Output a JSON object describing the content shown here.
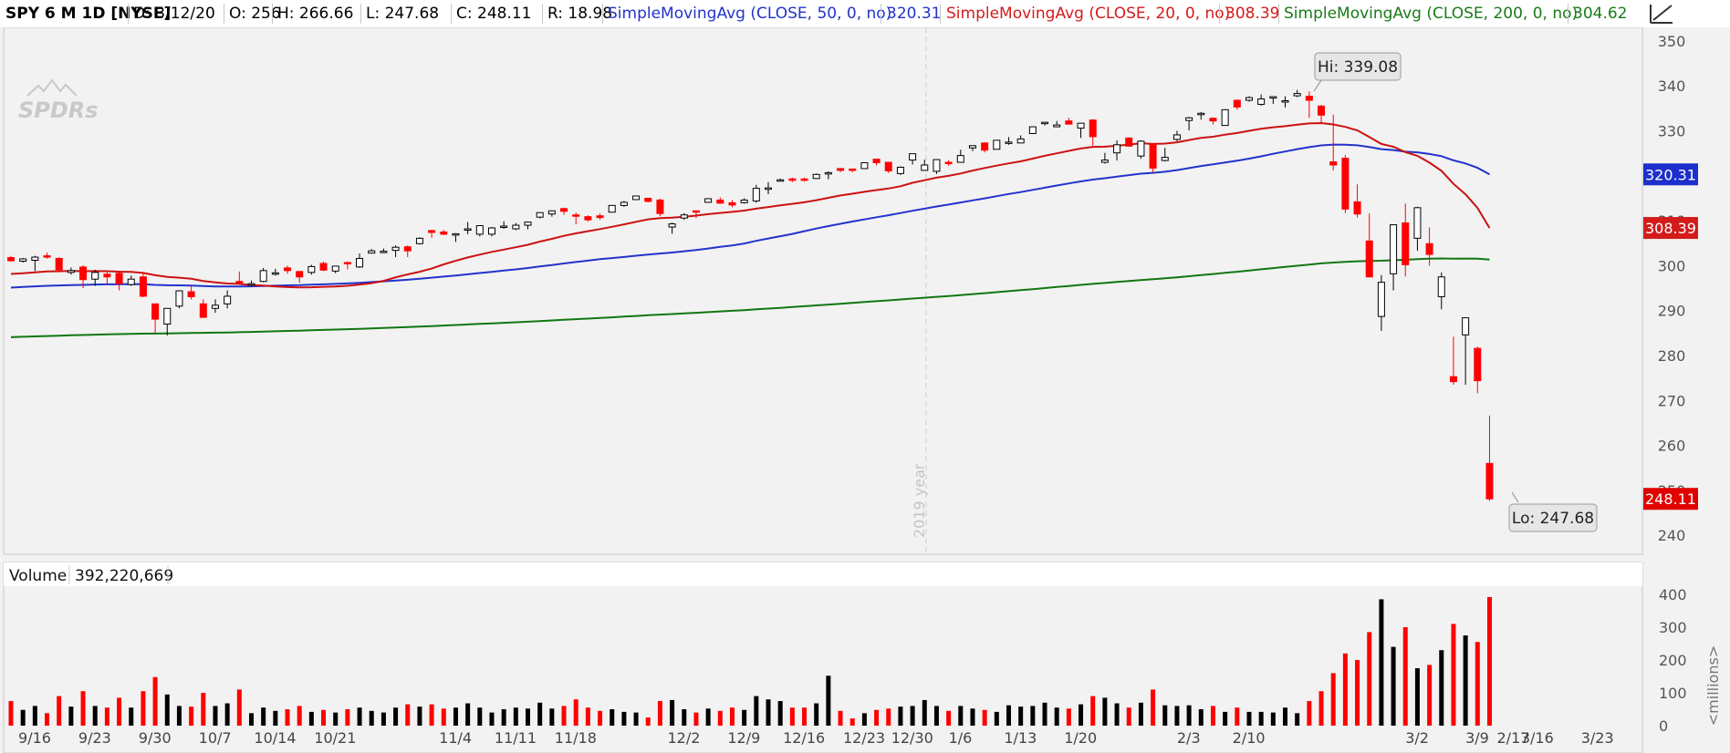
{
  "header": {
    "symbol": "SPY 6 M 1D [NYSE]",
    "date": "D: 3/12/20",
    "open": "O: 256",
    "high": "H: 266.66",
    "low": "L: 247.68",
    "close": "C: 248.11",
    "range": "R: 18.98",
    "sma50_label": "SimpleMovingAvg (CLOSE, 50, 0, no)",
    "sma50_value": "320.31",
    "sma20_label": "SimpleMovingAvg (CLOSE, 20, 0, no)",
    "sma20_value": "308.39",
    "sma200_label": "SimpleMovingAvg (CLOSE, 200, 0, no)",
    "sma200_value": "304.62",
    "tool_icon": "drawing-tool-icon"
  },
  "watermark": "SPDRs",
  "year_label": "2019 year",
  "hi_label": "Hi: 339.08",
  "lo_label": "Lo: 247.68",
  "volume": {
    "label": "Volume",
    "value": "392,220,669",
    "unit": "<millions>"
  },
  "colors": {
    "up": "#000000",
    "down": "#ff0000",
    "sma50": "#2233cc",
    "sma20": "#cc1111",
    "sma200": "#117711"
  },
  "chart_data": {
    "type": "candlestick",
    "x_tick_labels": [
      "9/16",
      "9/23",
      "9/30",
      "10/7",
      "10/14",
      "10/21",
      "11/4",
      "11/11",
      "11/18",
      "12/2",
      "12/9",
      "12/16",
      "12/23",
      "12/30",
      "1/6",
      "1/13",
      "1/20",
      "2/3",
      "2/10",
      "2/17",
      "3/2",
      "3/9",
      "3/16",
      "3/23"
    ],
    "x_tick_dates": [
      "2019-09-16",
      "2019-09-23",
      "2019-09-30",
      "2019-10-07",
      "2019-10-14",
      "2019-10-21",
      "2019-11-04",
      "2019-11-11",
      "2019-11-18",
      "2019-12-02",
      "2019-12-09",
      "2019-12-16",
      "2019-12-23",
      "2019-12-30",
      "2020-01-06",
      "2020-01-13",
      "2020-01-21",
      "2020-02-03",
      "2020-02-10",
      "2020-02-17",
      "2020-03-02",
      "2020-03-09",
      "2020-03-16",
      "2020-03-23"
    ],
    "price_axis": {
      "ticks": [
        240,
        250,
        260,
        270,
        280,
        290,
        300,
        310,
        320,
        330,
        340,
        350
      ],
      "range": [
        237,
        351
      ]
    },
    "volume_axis": {
      "ticks": [
        0,
        100,
        200,
        300,
        400
      ],
      "range": [
        0,
        400
      ],
      "unit": "millions"
    },
    "price_badges": [
      {
        "value": "320.31",
        "color": "#1c2fcc"
      },
      {
        "value": "308.39",
        "color": "#d41b1b"
      },
      {
        "value": "248.11",
        "color": "#e00000"
      }
    ],
    "bars": [
      [
        "2019-09-16",
        301.8,
        302.2,
        300.9,
        301.1,
        75
      ],
      [
        "2019-09-17",
        301.0,
        301.7,
        300.7,
        301.5,
        48
      ],
      [
        "2019-09-18",
        301.2,
        302.2,
        298.8,
        301.9,
        60
      ],
      [
        "2019-09-19",
        302.2,
        302.9,
        301.6,
        301.9,
        38
      ],
      [
        "2019-09-20",
        301.6,
        301.9,
        298.5,
        299.1,
        90
      ],
      [
        "2019-09-23",
        298.5,
        299.6,
        298.0,
        298.9,
        58
      ],
      [
        "2019-09-24",
        299.7,
        300.1,
        295.0,
        296.9,
        105
      ],
      [
        "2019-09-25",
        297.0,
        299.1,
        295.5,
        298.5,
        60
      ],
      [
        "2019-09-26",
        298.1,
        298.5,
        296.0,
        297.5,
        55
      ],
      [
        "2019-09-27",
        298.3,
        298.6,
        294.5,
        296.0,
        85
      ],
      [
        "2019-09-30",
        295.8,
        297.8,
        295.5,
        297.0,
        55
      ],
      [
        "2019-10-01",
        297.5,
        298.5,
        293.0,
        293.2,
        105
      ],
      [
        "2019-10-02",
        291.5,
        291.6,
        285.0,
        288.1,
        148
      ],
      [
        "2019-10-03",
        287.0,
        290.5,
        284.5,
        290.5,
        95
      ],
      [
        "2019-10-04",
        291.0,
        294.5,
        290.5,
        294.4,
        60
      ],
      [
        "2019-10-07",
        294.2,
        295.5,
        292.5,
        293.1,
        58
      ],
      [
        "2019-10-08",
        291.5,
        292.5,
        288.5,
        288.5,
        100
      ],
      [
        "2019-10-09",
        290.5,
        292.5,
        289.5,
        291.2,
        60
      ],
      [
        "2019-10-10",
        291.5,
        294.5,
        290.5,
        293.2,
        68
      ],
      [
        "2019-10-11",
        296.5,
        298.7,
        296.0,
        296.3,
        110
      ],
      [
        "2019-10-14",
        296.0,
        296.7,
        295.5,
        296.0,
        38
      ],
      [
        "2019-10-15",
        296.5,
        299.5,
        296.3,
        298.9,
        55
      ],
      [
        "2019-10-16",
        298.4,
        299.3,
        297.8,
        298.4,
        45
      ],
      [
        "2019-10-17",
        299.5,
        300.0,
        298.2,
        298.9,
        50
      ],
      [
        "2019-10-18",
        298.7,
        298.8,
        296.2,
        297.5,
        60
      ],
      [
        "2019-10-21",
        298.5,
        300.2,
        298.0,
        299.8,
        42
      ],
      [
        "2019-10-22",
        300.5,
        300.9,
        298.8,
        299.0,
        48
      ],
      [
        "2019-10-23",
        298.8,
        299.9,
        298.3,
        299.9,
        40
      ],
      [
        "2019-10-24",
        300.7,
        300.9,
        299.2,
        300.5,
        50
      ],
      [
        "2019-10-25",
        299.7,
        302.7,
        299.5,
        301.6,
        55
      ],
      [
        "2019-10-28",
        302.8,
        303.7,
        302.8,
        303.3,
        45
      ],
      [
        "2019-10-29",
        303.0,
        303.8,
        302.8,
        303.2,
        40
      ],
      [
        "2019-10-30",
        303.4,
        304.5,
        301.9,
        304.1,
        55
      ],
      [
        "2019-10-31",
        304.2,
        304.5,
        301.9,
        303.3,
        65
      ],
      [
        "2019-11-01",
        304.9,
        306.3,
        304.7,
        306.1,
        58
      ],
      [
        "2019-11-04",
        307.8,
        308.0,
        306.2,
        307.4,
        65
      ],
      [
        "2019-11-05",
        307.5,
        308.0,
        306.8,
        307.0,
        52
      ],
      [
        "2019-11-06",
        306.9,
        307.2,
        305.3,
        307.1,
        55
      ],
      [
        "2019-11-07",
        307.9,
        309.7,
        307.0,
        308.2,
        68
      ],
      [
        "2019-11-08",
        307.0,
        308.9,
        306.5,
        308.9,
        55
      ],
      [
        "2019-11-11",
        307.0,
        308.6,
        306.5,
        308.4,
        40
      ],
      [
        "2019-11-12",
        308.6,
        309.9,
        308.2,
        308.8,
        50
      ],
      [
        "2019-11-13",
        308.2,
        309.5,
        307.9,
        309.0,
        55
      ],
      [
        "2019-11-14",
        309.0,
        309.7,
        308.1,
        309.7,
        52
      ],
      [
        "2019-11-15",
        310.8,
        311.8,
        310.5,
        311.8,
        70
      ],
      [
        "2019-11-18",
        311.5,
        312.3,
        310.9,
        312.2,
        52
      ],
      [
        "2019-11-19",
        312.7,
        312.9,
        311.3,
        312.1,
        60
      ],
      [
        "2019-11-20",
        311.3,
        311.8,
        309.2,
        311.2,
        80
      ],
      [
        "2019-11-21",
        310.9,
        311.2,
        309.8,
        310.2,
        55
      ],
      [
        "2019-11-22",
        311.1,
        311.6,
        310.2,
        310.7,
        45
      ],
      [
        "2019-11-25",
        311.9,
        313.4,
        311.9,
        313.4,
        50
      ],
      [
        "2019-11-26",
        313.4,
        314.4,
        313.1,
        314.1,
        42
      ],
      [
        "2019-11-27",
        314.7,
        315.5,
        314.6,
        315.5,
        40
      ],
      [
        "2019-11-29",
        315.0,
        315.1,
        314.1,
        314.3,
        25
      ],
      [
        "2019-12-02",
        314.6,
        314.9,
        311.0,
        311.6,
        75
      ],
      [
        "2019-12-03",
        308.6,
        309.6,
        307.1,
        309.3,
        78
      ],
      [
        "2019-12-04",
        310.6,
        311.7,
        310.2,
        311.3,
        50
      ],
      [
        "2019-12-05",
        312.2,
        312.3,
        310.6,
        312.0,
        40
      ],
      [
        "2019-12-06",
        314.1,
        315.0,
        314.0,
        314.9,
        52
      ],
      [
        "2019-12-09",
        314.6,
        315.2,
        313.8,
        313.9,
        45
      ],
      [
        "2019-12-10",
        314.0,
        314.6,
        313.0,
        313.5,
        55
      ],
      [
        "2019-12-11",
        314.0,
        315.0,
        313.8,
        314.6,
        48
      ],
      [
        "2019-12-12",
        314.4,
        318.0,
        314.0,
        317.2,
        90
      ],
      [
        "2019-12-13",
        317.3,
        318.6,
        315.9,
        317.3,
        80
      ],
      [
        "2019-12-16",
        318.9,
        319.4,
        318.8,
        319.1,
        75
      ],
      [
        "2019-12-17",
        319.3,
        319.6,
        318.6,
        319.1,
        55
      ],
      [
        "2019-12-18",
        319.3,
        319.6,
        318.7,
        319.0,
        55
      ],
      [
        "2019-12-19",
        319.4,
        320.5,
        319.3,
        320.3,
        68
      ],
      [
        "2019-12-20",
        320.5,
        321.0,
        319.2,
        320.7,
        152
      ],
      [
        "2019-12-23",
        321.6,
        321.7,
        320.8,
        321.2,
        45
      ],
      [
        "2019-12-24",
        321.5,
        321.5,
        320.8,
        321.2,
        22
      ],
      [
        "2019-12-26",
        321.6,
        322.9,
        321.6,
        322.9,
        38
      ],
      [
        "2019-12-27",
        323.7,
        323.8,
        322.3,
        322.9,
        48
      ],
      [
        "2019-12-30",
        323.0,
        323.1,
        320.6,
        321.1,
        52
      ],
      [
        "2019-12-31",
        320.5,
        322.1,
        320.2,
        321.9,
        58
      ],
      [
        "2020-01-02",
        323.5,
        324.9,
        322.5,
        324.9,
        60
      ],
      [
        "2020-01-03",
        321.2,
        323.6,
        321.1,
        322.4,
        78
      ],
      [
        "2020-01-06",
        321.0,
        323.7,
        320.4,
        323.6,
        60
      ],
      [
        "2020-01-07",
        323.0,
        323.5,
        322.2,
        322.7,
        45
      ],
      [
        "2020-01-08",
        323.0,
        325.8,
        323.0,
        324.5,
        60
      ],
      [
        "2020-01-09",
        326.2,
        326.7,
        325.5,
        326.7,
        52
      ],
      [
        "2020-01-10",
        327.3,
        327.5,
        325.2,
        325.7,
        48
      ],
      [
        "2020-01-13",
        325.9,
        327.9,
        325.9,
        327.9,
        42
      ],
      [
        "2020-01-14",
        327.3,
        328.6,
        326.9,
        327.5,
        62
      ],
      [
        "2020-01-15",
        327.3,
        329.0,
        327.3,
        328.2,
        58
      ],
      [
        "2020-01-16",
        329.4,
        330.9,
        329.3,
        330.9,
        60
      ],
      [
        "2020-01-17",
        331.7,
        332.0,
        331.2,
        331.9,
        70
      ],
      [
        "2020-01-21",
        330.9,
        332.2,
        330.8,
        331.3,
        55
      ],
      [
        "2020-01-22",
        332.2,
        332.9,
        331.4,
        331.5,
        52
      ],
      [
        "2020-01-23",
        330.6,
        331.7,
        328.4,
        331.7,
        65
      ],
      [
        "2020-01-24",
        332.4,
        332.6,
        326.7,
        328.7,
        90
      ],
      [
        "2020-01-27",
        323.0,
        325.1,
        322.7,
        323.5,
        85
      ],
      [
        "2020-01-28",
        325.1,
        327.9,
        323.4,
        326.9,
        68
      ],
      [
        "2020-01-29",
        328.4,
        328.6,
        326.5,
        326.6,
        55
      ],
      [
        "2020-01-30",
        324.4,
        327.9,
        323.8,
        327.7,
        70
      ],
      [
        "2020-01-31",
        327.0,
        327.2,
        320.7,
        321.7,
        110
      ],
      [
        "2020-02-03",
        323.4,
        326.2,
        323.2,
        324.1,
        62
      ],
      [
        "2020-02-04",
        328.1,
        330.0,
        327.7,
        329.1,
        60
      ],
      [
        "2020-02-05",
        332.3,
        333.1,
        330.1,
        332.9,
        62
      ],
      [
        "2020-02-06",
        333.9,
        334.2,
        332.5,
        333.9,
        50
      ],
      [
        "2020-02-07",
        332.8,
        333.0,
        331.4,
        332.2,
        60
      ],
      [
        "2020-02-10",
        331.2,
        334.8,
        331.2,
        334.7,
        42
      ],
      [
        "2020-02-11",
        336.8,
        337.0,
        334.7,
        335.3,
        55
      ],
      [
        "2020-02-12",
        336.8,
        337.7,
        336.5,
        337.4,
        42
      ],
      [
        "2020-02-13",
        335.9,
        338.1,
        335.6,
        337.1,
        42
      ],
      [
        "2020-02-14",
        337.5,
        337.7,
        336.0,
        337.6,
        40
      ],
      [
        "2020-02-18",
        336.5,
        337.7,
        335.2,
        336.7,
        55
      ],
      [
        "2020-02-19",
        337.8,
        339.1,
        337.5,
        338.3,
        38
      ],
      [
        "2020-02-20",
        337.7,
        338.8,
        332.9,
        336.8,
        75
      ],
      [
        "2020-02-21",
        335.5,
        335.8,
        331.8,
        333.5,
        105
      ],
      [
        "2020-02-24",
        323.1,
        333.6,
        321.2,
        322.4,
        160
      ],
      [
        "2020-02-25",
        323.9,
        324.6,
        311.7,
        312.6,
        220
      ],
      [
        "2020-02-26",
        314.2,
        318.1,
        310.7,
        311.5,
        200
      ],
      [
        "2020-02-27",
        305.5,
        311.6,
        297.5,
        297.5,
        285
      ],
      [
        "2020-02-28",
        288.7,
        297.9,
        285.5,
        296.3,
        385
      ],
      [
        "2020-03-02",
        298.2,
        309.2,
        294.5,
        309.1,
        240
      ],
      [
        "2020-03-03",
        309.5,
        313.8,
        297.6,
        300.2,
        300
      ],
      [
        "2020-03-04",
        306.1,
        313.1,
        303.3,
        312.9,
        175
      ],
      [
        "2020-03-05",
        304.9,
        308.5,
        300.0,
        302.5,
        185
      ],
      [
        "2020-03-06",
        293.1,
        298.5,
        290.3,
        297.5,
        230
      ],
      [
        "2020-03-09",
        275.3,
        284.2,
        273.5,
        274.2,
        310
      ],
      [
        "2020-03-10",
        284.6,
        288.5,
        273.5,
        288.4,
        275
      ],
      [
        "2020-03-11",
        281.6,
        282.0,
        271.6,
        274.4,
        255
      ],
      [
        "2020-03-12",
        256.0,
        266.66,
        247.68,
        248.11,
        392
      ]
    ]
  }
}
